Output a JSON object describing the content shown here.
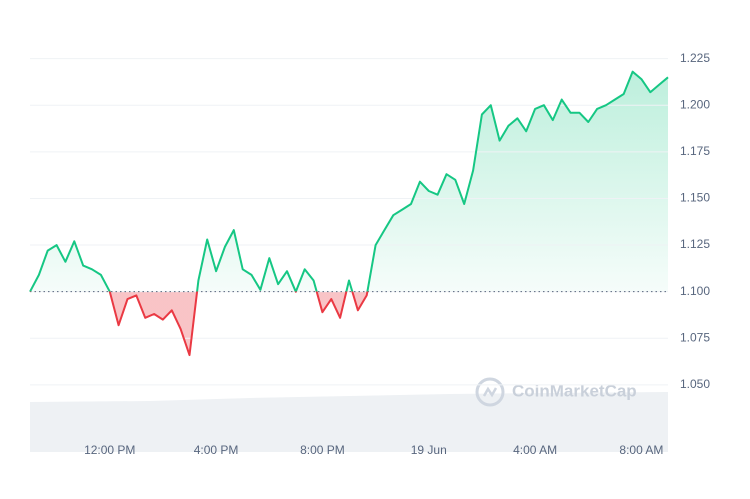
{
  "chart_data": {
    "type": "line",
    "categories": [
      null,
      null,
      null,
      null,
      null,
      null,
      null,
      null,
      null,
      "12:00 PM",
      null,
      null,
      null,
      null,
      null,
      null,
      null,
      null,
      null,
      null,
      null,
      "4:00 PM",
      null,
      null,
      null,
      null,
      null,
      null,
      null,
      null,
      null,
      null,
      null,
      "8:00 PM",
      null,
      null,
      null,
      null,
      null,
      null,
      null,
      null,
      null,
      null,
      null,
      "19 Jun",
      null,
      null,
      null,
      null,
      null,
      null,
      null,
      null,
      null,
      null,
      null,
      "4:00 AM",
      null,
      null,
      null,
      null,
      null,
      null,
      null,
      null,
      null,
      null,
      null,
      "8:00 AM",
      null,
      null,
      null
    ],
    "values": [
      1.1,
      1.109,
      1.122,
      1.125,
      1.116,
      1.127,
      1.114,
      1.112,
      1.109,
      1.1,
      1.082,
      1.096,
      1.098,
      1.086,
      1.088,
      1.085,
      1.09,
      1.08,
      1.066,
      1.106,
      1.128,
      1.111,
      1.124,
      1.133,
      1.112,
      1.109,
      1.101,
      1.118,
      1.104,
      1.111,
      1.1,
      1.112,
      1.106,
      1.089,
      1.096,
      1.086,
      1.106,
      1.09,
      1.098,
      1.125,
      1.133,
      1.141,
      1.144,
      1.147,
      1.159,
      1.154,
      1.152,
      1.163,
      1.16,
      1.147,
      1.165,
      1.195,
      1.2,
      1.181,
      1.189,
      1.193,
      1.186,
      1.198,
      1.2,
      1.192,
      1.203,
      1.196,
      1.196,
      1.191,
      1.198,
      1.2,
      1.203,
      1.206,
      1.218,
      1.214,
      1.207,
      1.211,
      1.215
    ],
    "baseline": 1.1,
    "up_color": "#16c784",
    "down_color": "#ea3943",
    "ylim": [
      1.014,
      1.25
    ],
    "yticks": [
      {
        "value": 1.05,
        "label": "1.050"
      },
      1.075,
      {
        "value": 1.1,
        "label": "1.100"
      },
      1.125,
      {
        "value": 1.15,
        "label": "1.150"
      },
      1.175,
      {
        "value": 1.2,
        "label": "1.200"
      },
      1.225
    ],
    "grid": true,
    "watermark": "CoinMarketCap"
  }
}
